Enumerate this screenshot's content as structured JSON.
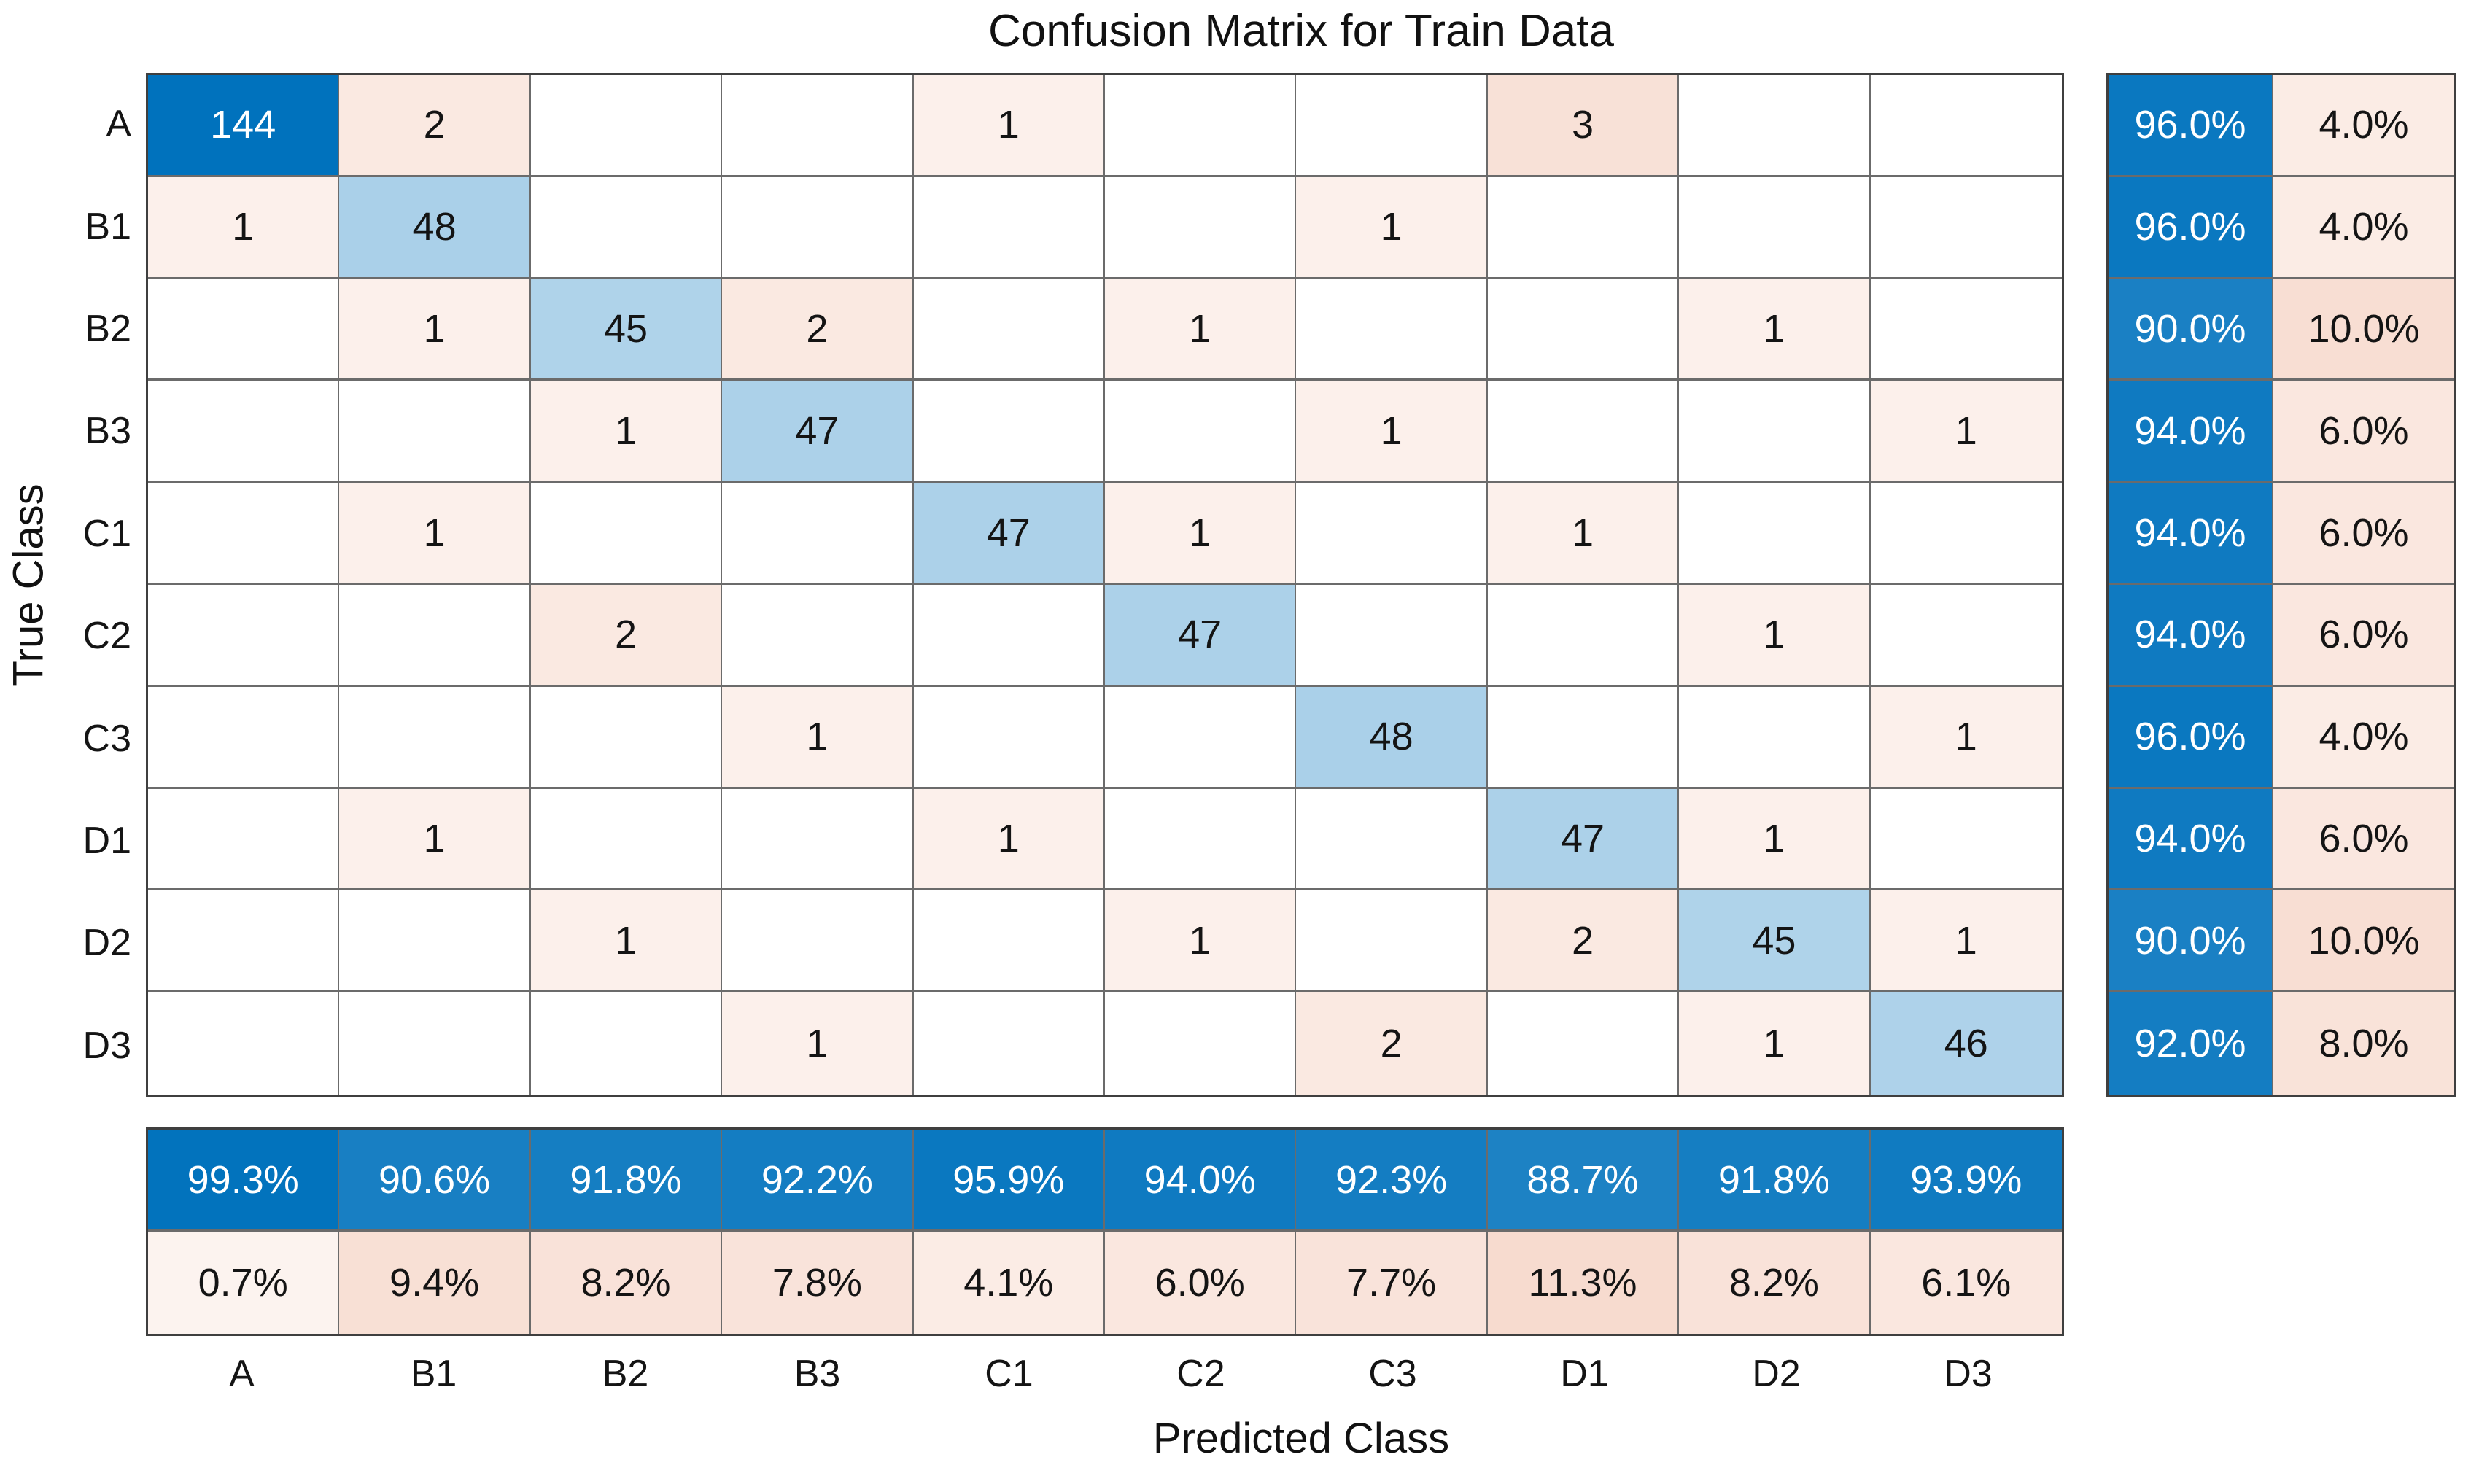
{
  "chart_data": {
    "type": "heatmap",
    "subtype": "confusion-matrix",
    "title": "Confusion Matrix for Train Data",
    "xlabel": "Predicted Class",
    "ylabel": "True Class",
    "classes": [
      "A",
      "B1",
      "B2",
      "B3",
      "C1",
      "C2",
      "C3",
      "D1",
      "D2",
      "D3"
    ],
    "matrix": [
      [
        144,
        2,
        0,
        0,
        1,
        0,
        0,
        3,
        0,
        0
      ],
      [
        1,
        48,
        0,
        0,
        0,
        0,
        1,
        0,
        0,
        0
      ],
      [
        0,
        1,
        45,
        2,
        0,
        1,
        0,
        0,
        1,
        0
      ],
      [
        0,
        0,
        1,
        47,
        0,
        0,
        1,
        0,
        0,
        1
      ],
      [
        0,
        1,
        0,
        0,
        47,
        1,
        0,
        1,
        0,
        0
      ],
      [
        0,
        0,
        2,
        0,
        0,
        47,
        0,
        0,
        1,
        0
      ],
      [
        0,
        0,
        0,
        1,
        0,
        0,
        48,
        0,
        0,
        1
      ],
      [
        0,
        1,
        0,
        0,
        1,
        0,
        0,
        47,
        1,
        0
      ],
      [
        0,
        0,
        1,
        0,
        0,
        1,
        0,
        2,
        45,
        1
      ],
      [
        0,
        0,
        0,
        1,
        0,
        0,
        2,
        0,
        1,
        46
      ]
    ],
    "row_summary": {
      "correct": [
        "96.0%",
        "96.0%",
        "90.0%",
        "94.0%",
        "94.0%",
        "94.0%",
        "96.0%",
        "94.0%",
        "90.0%",
        "92.0%"
      ],
      "incorrect": [
        "4.0%",
        "4.0%",
        "10.0%",
        "6.0%",
        "6.0%",
        "6.0%",
        "4.0%",
        "6.0%",
        "10.0%",
        "8.0%"
      ]
    },
    "col_summary": {
      "correct": [
        "99.3%",
        "90.6%",
        "91.8%",
        "92.2%",
        "95.9%",
        "94.0%",
        "92.3%",
        "88.7%",
        "91.8%",
        "93.9%"
      ],
      "incorrect": [
        "0.7%",
        "9.4%",
        "8.2%",
        "7.8%",
        "4.1%",
        "6.0%",
        "7.7%",
        "11.3%",
        "8.2%",
        "6.1%"
      ]
    },
    "colors": {
      "diagonal": "#0072BD",
      "off_diagonal": "#D95319",
      "grid_line": "#6b6b6b",
      "border": "#3f3f3f",
      "text": "#141414",
      "text_on_dark": "#ffffff",
      "background": "#ffffff"
    },
    "grid": true,
    "legend_position": "none"
  }
}
